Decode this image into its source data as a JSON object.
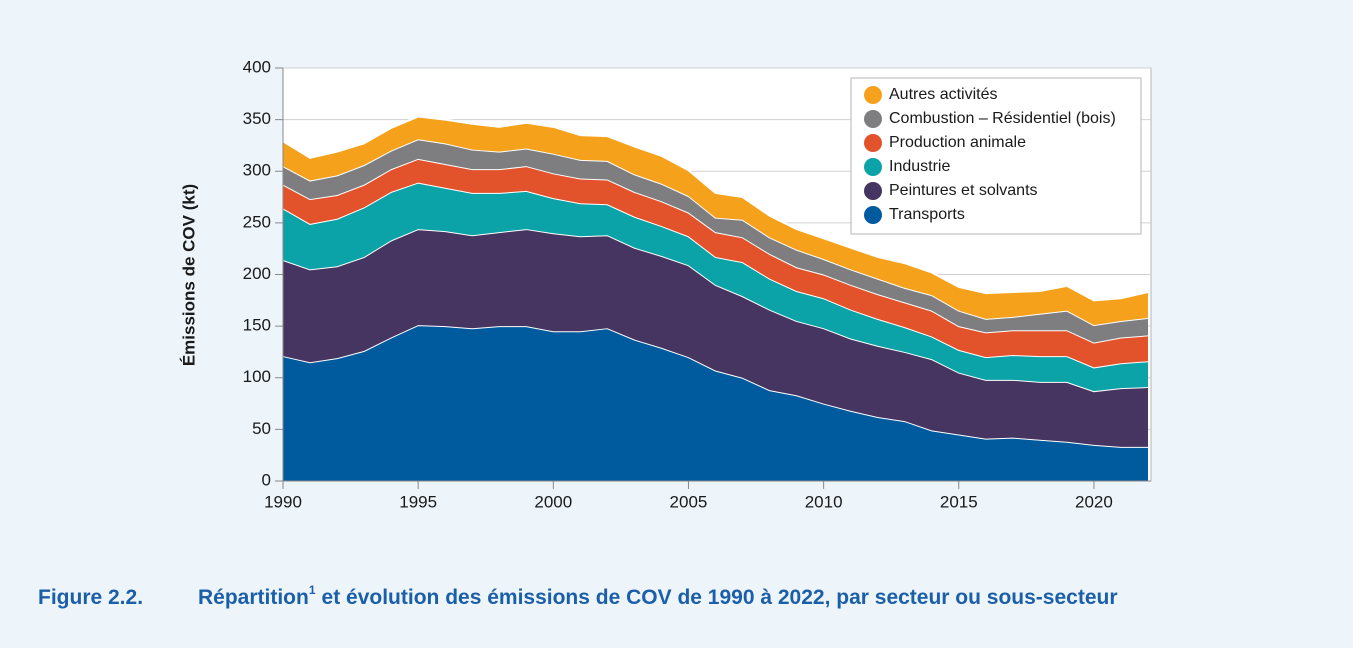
{
  "chart_data": {
    "type": "stacked_area",
    "y_label": "Émissions de COV (kt)",
    "x": [
      1990,
      1991,
      1992,
      1993,
      1994,
      1995,
      1996,
      1997,
      1998,
      1999,
      2000,
      2001,
      2002,
      2003,
      2004,
      2005,
      2006,
      2007,
      2008,
      2009,
      2010,
      2011,
      2012,
      2013,
      2014,
      2015,
      2016,
      2017,
      2018,
      2019,
      2020,
      2021,
      2022
    ],
    "xlim": [
      1990,
      2022
    ],
    "xticks": [
      1990,
      1995,
      2000,
      2005,
      2010,
      2015,
      2020
    ],
    "ylim": [
      0,
      400
    ],
    "yticks": [
      0,
      50,
      100,
      150,
      200,
      250,
      300,
      350,
      400
    ],
    "grid": true,
    "legend": "upper right",
    "series": [
      {
        "name": "Transports",
        "color": "#005a9e",
        "values": [
          121,
          115,
          119,
          126,
          139,
          151,
          150,
          148,
          150,
          150,
          145,
          145,
          148,
          137,
          129,
          120,
          107,
          100,
          88,
          83,
          75,
          68,
          62,
          58,
          49,
          45,
          41,
          42,
          40,
          38,
          35,
          33,
          33
        ]
      },
      {
        "name": "Peintures et solvants",
        "color": "#463461",
        "values": [
          93,
          90,
          89,
          91,
          94,
          93,
          92,
          90,
          91,
          94,
          95,
          92,
          90,
          89,
          89,
          89,
          83,
          79,
          78,
          72,
          73,
          70,
          69,
          67,
          69,
          60,
          57,
          56,
          56,
          58,
          52,
          57,
          58
        ]
      },
      {
        "name": "Industrie",
        "color": "#0ba3a7",
        "values": [
          50,
          44,
          46,
          48,
          47,
          45,
          42,
          41,
          38,
          37,
          34,
          32,
          30,
          30,
          29,
          28,
          27,
          33,
          30,
          29,
          29,
          28,
          26,
          24,
          22,
          22,
          22,
          24,
          25,
          25,
          23,
          24,
          25
        ]
      },
      {
        "name": "Production animale",
        "color": "#e3532b",
        "values": [
          23,
          24,
          23,
          22,
          22,
          23,
          23,
          23,
          23,
          24,
          24,
          24,
          24,
          24,
          24,
          23,
          24,
          24,
          24,
          23,
          23,
          24,
          24,
          24,
          25,
          23,
          24,
          24,
          25,
          25,
          24,
          25,
          25
        ]
      },
      {
        "name": "Combustion – Résidentiel (bois)",
        "color": "#7e7e80",
        "values": [
          18,
          18,
          19,
          19,
          18,
          19,
          20,
          19,
          17,
          17,
          19,
          18,
          18,
          17,
          17,
          16,
          14,
          17,
          16,
          17,
          15,
          15,
          15,
          14,
          15,
          15,
          13,
          13,
          16,
          19,
          17,
          16,
          17
        ]
      },
      {
        "name": "Autres activités",
        "color": "#f5a11c",
        "values": [
          24,
          22,
          23,
          21,
          22,
          22,
          23,
          25,
          24,
          25,
          26,
          24,
          24,
          27,
          27,
          25,
          24,
          22,
          21,
          20,
          20,
          21,
          21,
          24,
          22,
          23,
          25,
          24,
          22,
          24,
          24,
          22,
          25
        ]
      }
    ]
  },
  "caption": {
    "label": "Figure 2.2.",
    "text_before": "Répartition",
    "footnote": "1",
    "text_after": "et évolution des émissions de COV de 1990 à 2022, par secteur ou sous-secteur"
  }
}
